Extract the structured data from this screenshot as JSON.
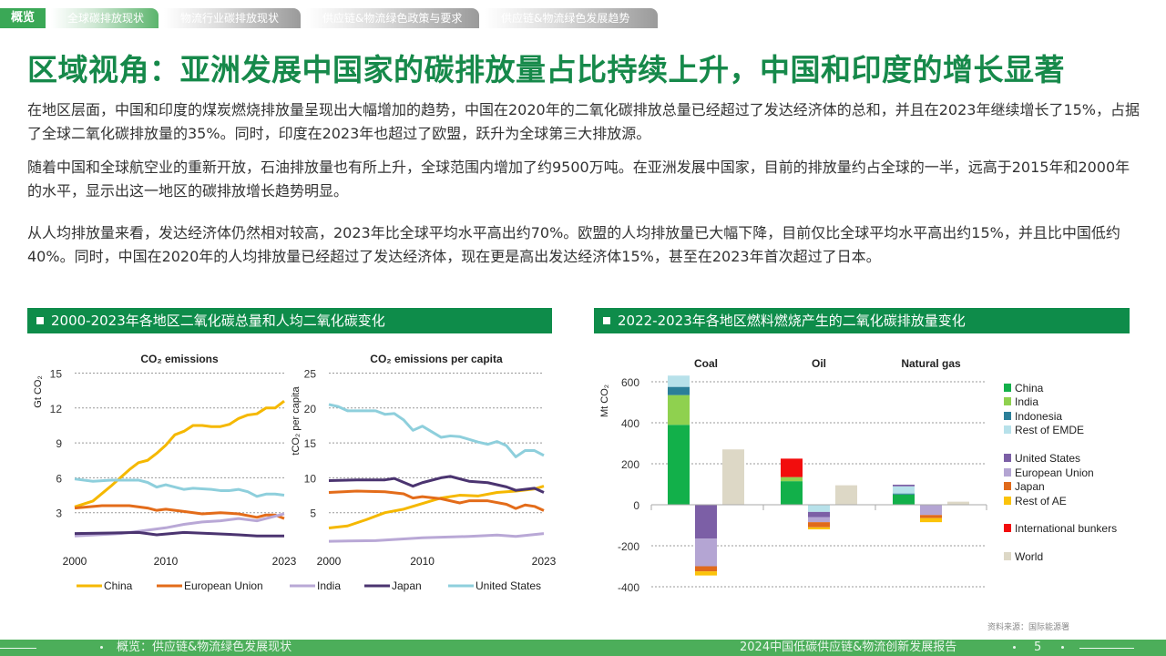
{
  "nav": {
    "home": "概览",
    "tabs": [
      "全球碳排放现状",
      "物流行业碳排放现状",
      "供应链&物流绿色政策与要求",
      "供应链&物流绿色发展趋势"
    ]
  },
  "title": "区域视角：亚洲发展中国家的碳排放量占比持续上升，中国和印度的增长显著",
  "paragraphs": [
    "在地区层面，中国和印度的煤炭燃烧排放量呈现出大幅增加的趋势，中国在2020年的二氧化碳排放总量已经超过了发达经济体的总和，并且在2023年继续增长了15%，占据了全球二氧化碳排放量的35%。同时，印度在2023年也超过了欧盟，跃升为全球第三大排放源。",
    "随着中国和全球航空业的重新开放，石油排放量也有所上升，全球范围内增加了约9500万吨。在亚洲发展中国家，目前的排放量约占全球的一半，远高于2015年和2000年的水平，显示出这一地区的碳排放增长趋势明显。",
    "从人均排放量来看，发达经济体仍然相对较高，2023年比全球平均水平高出约70%。欧盟的人均排放量已大幅下降，目前仅比全球平均水平高出约15%，并且比中国低约40%。同时，中国在2020年的人均排放量已经超过了发达经济体，现在更是高出发达经济体15%，甚至在2023年首次超过了日本。"
  ],
  "sections": {
    "left": "2000-2023年各地区二氧化碳总量和人均二氧化碳变化",
    "right": "2022-2023年各地区燃料燃烧产生的二氧化碳排放量变化"
  },
  "source": "资料来源：国际能源署",
  "footer": {
    "left": "概览：供应链&物流绿色发展现状",
    "right": "2024中国低碳供应链&物流创新发展报告",
    "page": "5"
  },
  "chart_data": [
    {
      "type": "line",
      "title": "CO₂ emissions",
      "ylabel": "Gt CO₂",
      "xlim": [
        2000,
        2023
      ],
      "ylim": [
        0,
        15
      ],
      "yticks": [
        3,
        6,
        9,
        12,
        15
      ],
      "xticks": [
        2000,
        2010,
        2023
      ],
      "grid": true,
      "legend": "bottom",
      "series": [
        {
          "name": "China",
          "color": "#f5b800",
          "points": [
            [
              2000,
              3.5
            ],
            [
              2002,
              4.0
            ],
            [
              2004,
              5.3
            ],
            [
              2006,
              6.7
            ],
            [
              2007,
              7.3
            ],
            [
              2008,
              7.5
            ],
            [
              2009,
              8.1
            ],
            [
              2010,
              8.8
            ],
            [
              2011,
              9.7
            ],
            [
              2012,
              10.0
            ],
            [
              2013,
              10.5
            ],
            [
              2014,
              10.5
            ],
            [
              2015,
              10.4
            ],
            [
              2016,
              10.4
            ],
            [
              2017,
              10.6
            ],
            [
              2018,
              11.1
            ],
            [
              2019,
              11.4
            ],
            [
              2020,
              11.5
            ],
            [
              2021,
              12.0
            ],
            [
              2022,
              12.0
            ],
            [
              2023,
              12.6
            ]
          ]
        },
        {
          "name": "European Union",
          "color": "#e36c1a",
          "points": [
            [
              2000,
              3.4
            ],
            [
              2003,
              3.6
            ],
            [
              2006,
              3.6
            ],
            [
              2008,
              3.4
            ],
            [
              2009,
              3.2
            ],
            [
              2010,
              3.3
            ],
            [
              2012,
              3.1
            ],
            [
              2014,
              2.9
            ],
            [
              2016,
              3.0
            ],
            [
              2018,
              2.9
            ],
            [
              2020,
              2.6
            ],
            [
              2021,
              2.8
            ],
            [
              2022,
              2.8
            ],
            [
              2023,
              2.5
            ]
          ]
        },
        {
          "name": "India",
          "color": "#b9a8d6",
          "points": [
            [
              2000,
              1.0
            ],
            [
              2005,
              1.2
            ],
            [
              2008,
              1.5
            ],
            [
              2010,
              1.7
            ],
            [
              2012,
              2.0
            ],
            [
              2014,
              2.2
            ],
            [
              2016,
              2.3
            ],
            [
              2018,
              2.5
            ],
            [
              2020,
              2.3
            ],
            [
              2022,
              2.7
            ],
            [
              2023,
              2.9
            ]
          ]
        },
        {
          "name": "Japan",
          "color": "#4b3470",
          "points": [
            [
              2000,
              1.2
            ],
            [
              2004,
              1.25
            ],
            [
              2007,
              1.3
            ],
            [
              2009,
              1.1
            ],
            [
              2012,
              1.3
            ],
            [
              2015,
              1.2
            ],
            [
              2018,
              1.1
            ],
            [
              2020,
              1.0
            ],
            [
              2023,
              1.0
            ]
          ]
        },
        {
          "name": "United States",
          "color": "#8ecfdc",
          "points": [
            [
              2000,
              5.9
            ],
            [
              2002,
              5.7
            ],
            [
              2004,
              5.8
            ],
            [
              2005,
              5.8
            ],
            [
              2007,
              5.8
            ],
            [
              2008,
              5.6
            ],
            [
              2009,
              5.2
            ],
            [
              2010,
              5.4
            ],
            [
              2012,
              5.0
            ],
            [
              2013,
              5.1
            ],
            [
              2015,
              5.0
            ],
            [
              2016,
              4.9
            ],
            [
              2017,
              4.9
            ],
            [
              2018,
              5.0
            ],
            [
              2019,
              4.8
            ],
            [
              2020,
              4.4
            ],
            [
              2021,
              4.6
            ],
            [
              2022,
              4.6
            ],
            [
              2023,
              4.5
            ]
          ]
        }
      ]
    },
    {
      "type": "line",
      "title": "CO₂ emissions per capita",
      "ylabel": "tCO₂ per capita",
      "xlim": [
        2000,
        2023
      ],
      "ylim": [
        0,
        25
      ],
      "yticks": [
        5,
        10,
        15,
        20,
        25
      ],
      "xticks": [
        2000,
        2010,
        2023
      ],
      "grid": true,
      "series": [
        {
          "name": "China",
          "color": "#f5b800",
          "points": [
            [
              2000,
              2.8
            ],
            [
              2002,
              3.1
            ],
            [
              2004,
              4.0
            ],
            [
              2006,
              5.0
            ],
            [
              2008,
              5.5
            ],
            [
              2010,
              6.3
            ],
            [
              2012,
              7.1
            ],
            [
              2014,
              7.5
            ],
            [
              2016,
              7.4
            ],
            [
              2018,
              7.9
            ],
            [
              2020,
              8.1
            ],
            [
              2022,
              8.4
            ],
            [
              2023,
              8.8
            ]
          ]
        },
        {
          "name": "European Union",
          "color": "#e36c1a",
          "points": [
            [
              2000,
              7.9
            ],
            [
              2003,
              8.1
            ],
            [
              2006,
              8.0
            ],
            [
              2008,
              7.7
            ],
            [
              2009,
              7.1
            ],
            [
              2010,
              7.3
            ],
            [
              2012,
              7.0
            ],
            [
              2014,
              6.4
            ],
            [
              2015,
              6.7
            ],
            [
              2017,
              6.7
            ],
            [
              2019,
              6.2
            ],
            [
              2020,
              5.6
            ],
            [
              2021,
              6.1
            ],
            [
              2022,
              5.9
            ],
            [
              2023,
              5.3
            ]
          ]
        },
        {
          "name": "India",
          "color": "#b9a8d6",
          "points": [
            [
              2000,
              0.9
            ],
            [
              2005,
              1.0
            ],
            [
              2010,
              1.4
            ],
            [
              2015,
              1.6
            ],
            [
              2018,
              1.8
            ],
            [
              2020,
              1.6
            ],
            [
              2023,
              2.0
            ]
          ]
        },
        {
          "name": "Japan",
          "color": "#4b3470",
          "points": [
            [
              2000,
              9.6
            ],
            [
              2003,
              9.7
            ],
            [
              2006,
              9.7
            ],
            [
              2007,
              9.9
            ],
            [
              2009,
              8.8
            ],
            [
              2010,
              9.3
            ],
            [
              2012,
              10.0
            ],
            [
              2013,
              10.2
            ],
            [
              2015,
              9.5
            ],
            [
              2017,
              9.3
            ],
            [
              2019,
              8.7
            ],
            [
              2020,
              8.2
            ],
            [
              2022,
              8.5
            ],
            [
              2023,
              7.9
            ]
          ]
        },
        {
          "name": "United States",
          "color": "#8ecfdc",
          "points": [
            [
              2000,
              20.5
            ],
            [
              2001,
              20.2
            ],
            [
              2002,
              19.6
            ],
            [
              2005,
              19.6
            ],
            [
              2006,
              19.1
            ],
            [
              2007,
              19.2
            ],
            [
              2008,
              18.3
            ],
            [
              2009,
              16.8
            ],
            [
              2010,
              17.4
            ],
            [
              2012,
              15.8
            ],
            [
              2013,
              16.0
            ],
            [
              2014,
              15.9
            ],
            [
              2016,
              15.1
            ],
            [
              2017,
              14.8
            ],
            [
              2018,
              15.2
            ],
            [
              2019,
              14.6
            ],
            [
              2020,
              13.0
            ],
            [
              2021,
              13.9
            ],
            [
              2022,
              13.9
            ],
            [
              2023,
              13.2
            ]
          ]
        }
      ]
    },
    {
      "type": "bar",
      "stacked": true,
      "ylabel": "Mt CO₂",
      "ylim": [
        -400,
        600
      ],
      "yticks": [
        600,
        400,
        200,
        0,
        -200,
        -400
      ],
      "grid": true,
      "legend": "right",
      "categories": [
        "Coal",
        "Oil",
        "Natural gas"
      ],
      "legend_items": [
        {
          "name": "China",
          "color": "#12b04a"
        },
        {
          "name": "India",
          "color": "#8fd14f"
        },
        {
          "name": "Indonesia",
          "color": "#2b7f99"
        },
        {
          "name": "Rest of EMDE",
          "color": "#b7e1ea"
        },
        {
          "name": "United States",
          "color": "#7c5fa6"
        },
        {
          "name": "European Union",
          "color": "#b4a5d3"
        },
        {
          "name": "Japan",
          "color": "#e06a1b"
        },
        {
          "name": "Rest of AE",
          "color": "#fbc30a"
        },
        {
          "name": "International bunkers",
          "color": "#f20d0d"
        },
        {
          "name": "World",
          "color": "#ddd8c6"
        }
      ],
      "bars": [
        {
          "category": "Coal",
          "increase": {
            "China": 390,
            "India": 145,
            "Indonesia": 40,
            "Rest of EMDE": 55
          },
          "decrease": {
            "United States": -165,
            "European Union": -135,
            "Japan": -25,
            "Rest of AE": -20
          },
          "World": 270
        },
        {
          "category": "Oil",
          "increase": {
            "China": 115,
            "India": 20,
            "International bunkers": 90
          },
          "decrease": {
            "Rest of EMDE": -35,
            "United States": -25,
            "European Union": -25,
            "Japan": -25,
            "Rest of AE": -10
          },
          "World": 95
        },
        {
          "category": "Natural gas",
          "increase": {
            "China": 50,
            "Indonesia": 5,
            "Rest of EMDE": 35,
            "United States": 8
          },
          "decrease": {
            "European Union": -50,
            "Japan": -15,
            "Rest of AE": -20
          },
          "World": 15
        }
      ]
    }
  ]
}
